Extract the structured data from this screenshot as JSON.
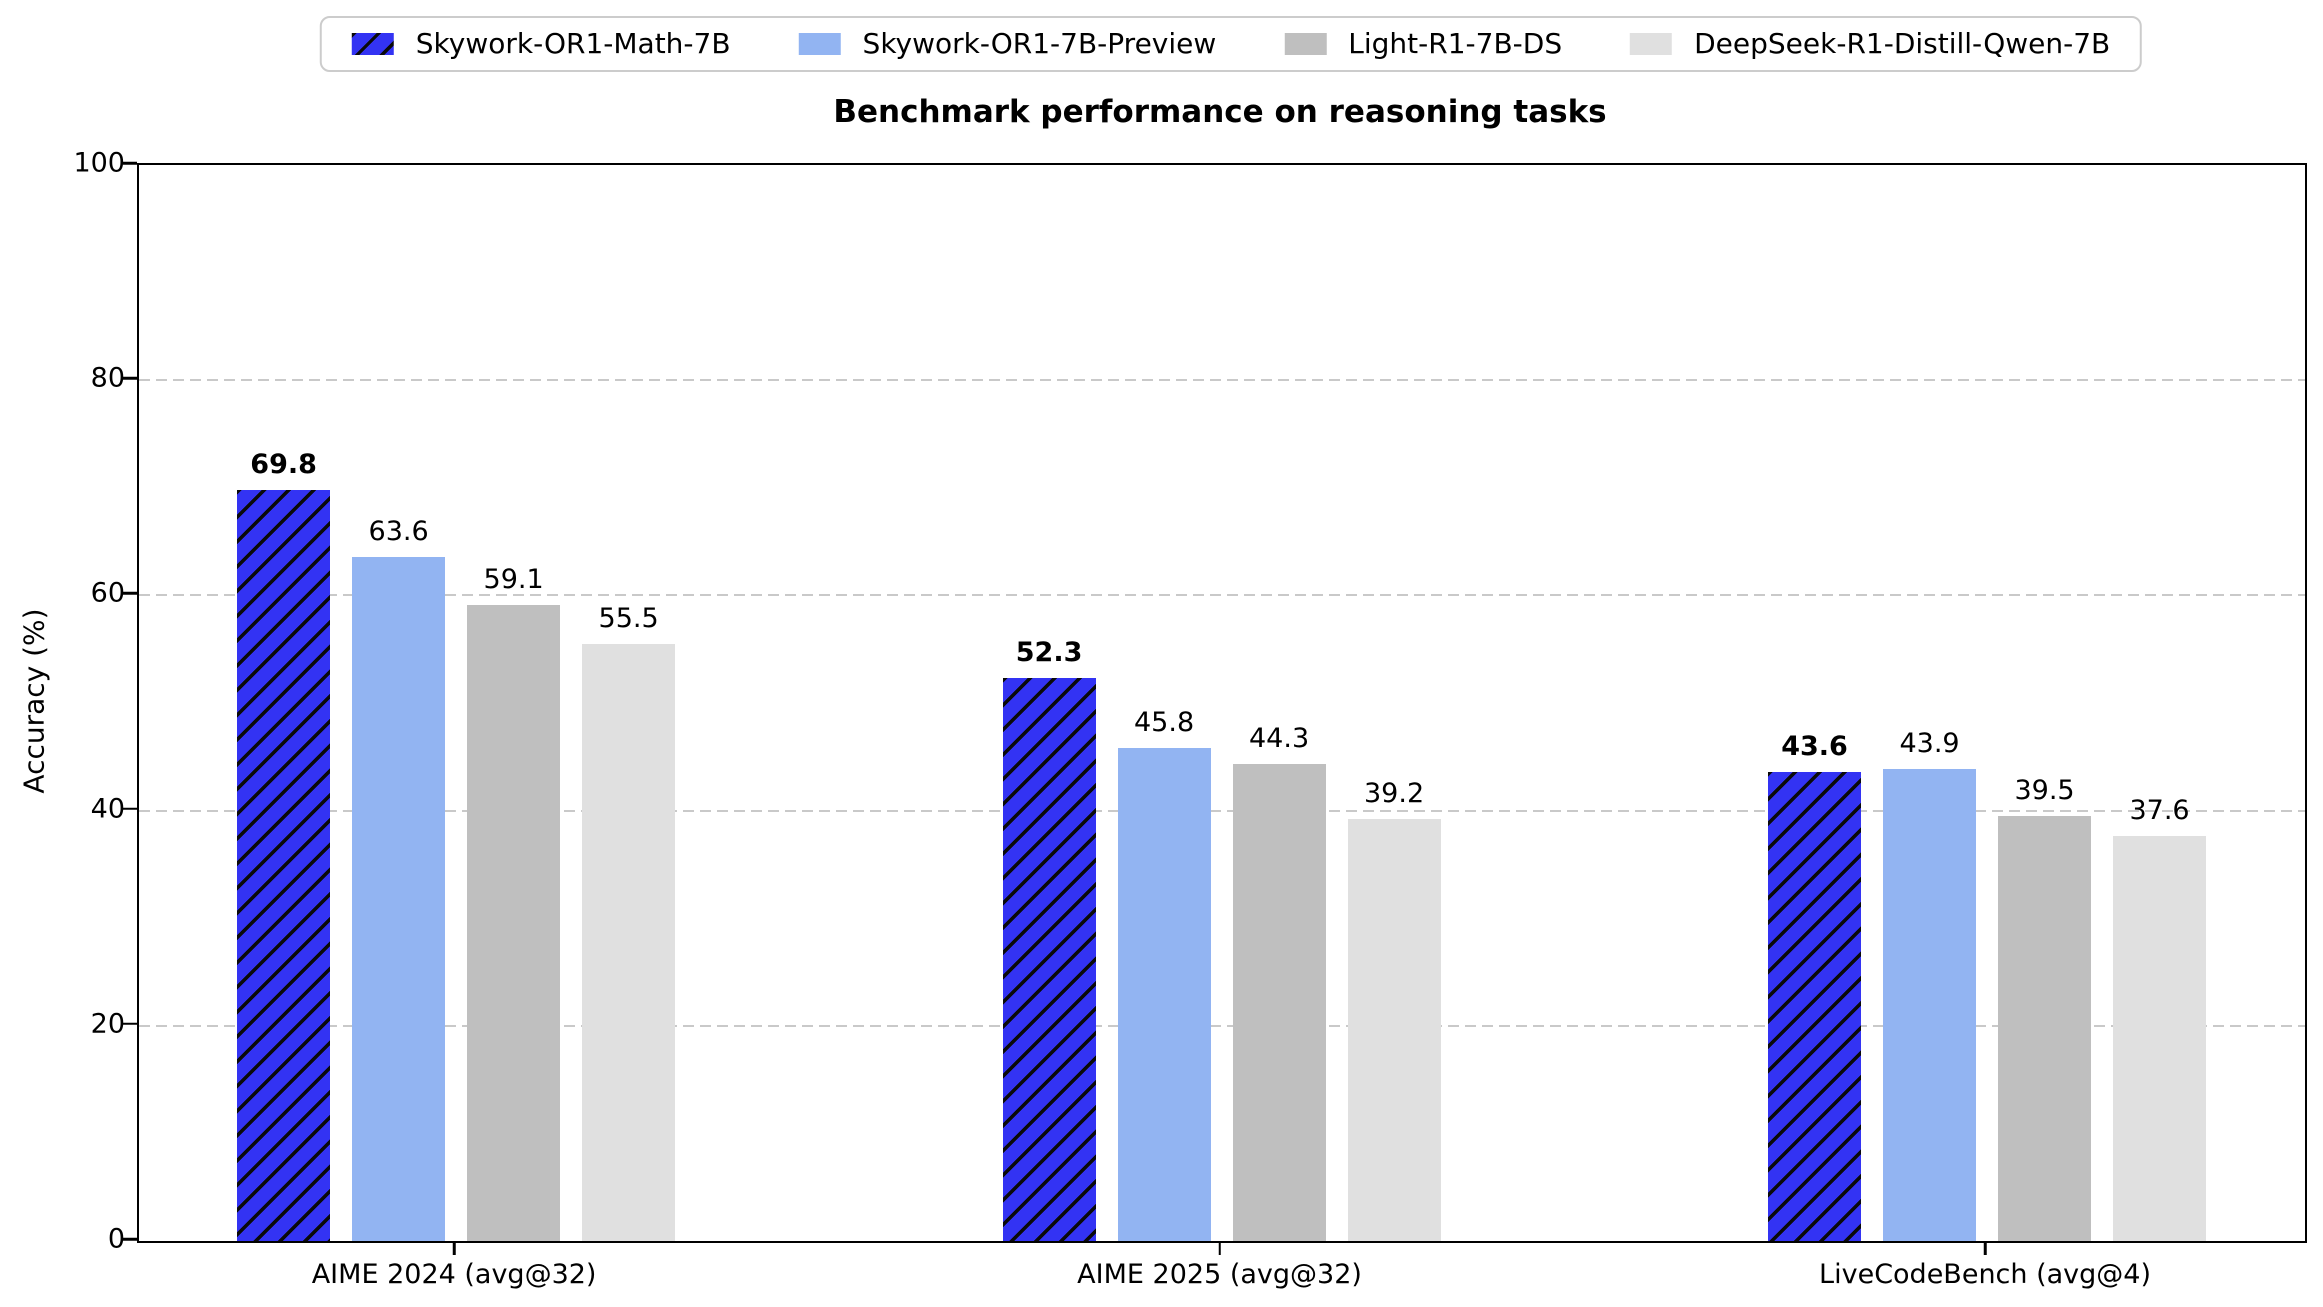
{
  "chart_data": {
    "type": "bar",
    "title": "Benchmark performance on reasoning tasks",
    "xlabel": "",
    "ylabel": "Accuracy (%)",
    "ylim": [
      0,
      100
    ],
    "yticks": [
      0,
      20,
      40,
      60,
      80,
      100
    ],
    "grid": "horizontal dashed gridlines at 20/40/60/80",
    "grid_color": "#c9c9c9",
    "legend_position": "top-center outside plot",
    "categories": [
      "AIME 2024 (avg@32)",
      "AIME 2025 (avg@32)",
      "LiveCodeBench (avg@4)"
    ],
    "series": [
      {
        "name": "Skywork-OR1-Math-7B",
        "color": "#3333f3",
        "hatch": "/",
        "hatch_color": "#0a0a0a",
        "bold_value_labels": true,
        "values": [
          69.8,
          52.3,
          43.6
        ]
      },
      {
        "name": "Skywork-OR1-7B-Preview",
        "color": "#92b4f2",
        "hatch": null,
        "bold_value_labels": false,
        "values": [
          63.6,
          45.8,
          43.9
        ]
      },
      {
        "name": "Light-R1-7B-DS",
        "color": "#bfbfbf",
        "hatch": null,
        "bold_value_labels": false,
        "values": [
          59.1,
          44.3,
          39.5
        ]
      },
      {
        "name": "DeepSeek-R1-Distill-Qwen-7B",
        "color": "#e0e0e0",
        "hatch": null,
        "bold_value_labels": false,
        "values": [
          55.5,
          39.2,
          37.6
        ]
      }
    ]
  }
}
